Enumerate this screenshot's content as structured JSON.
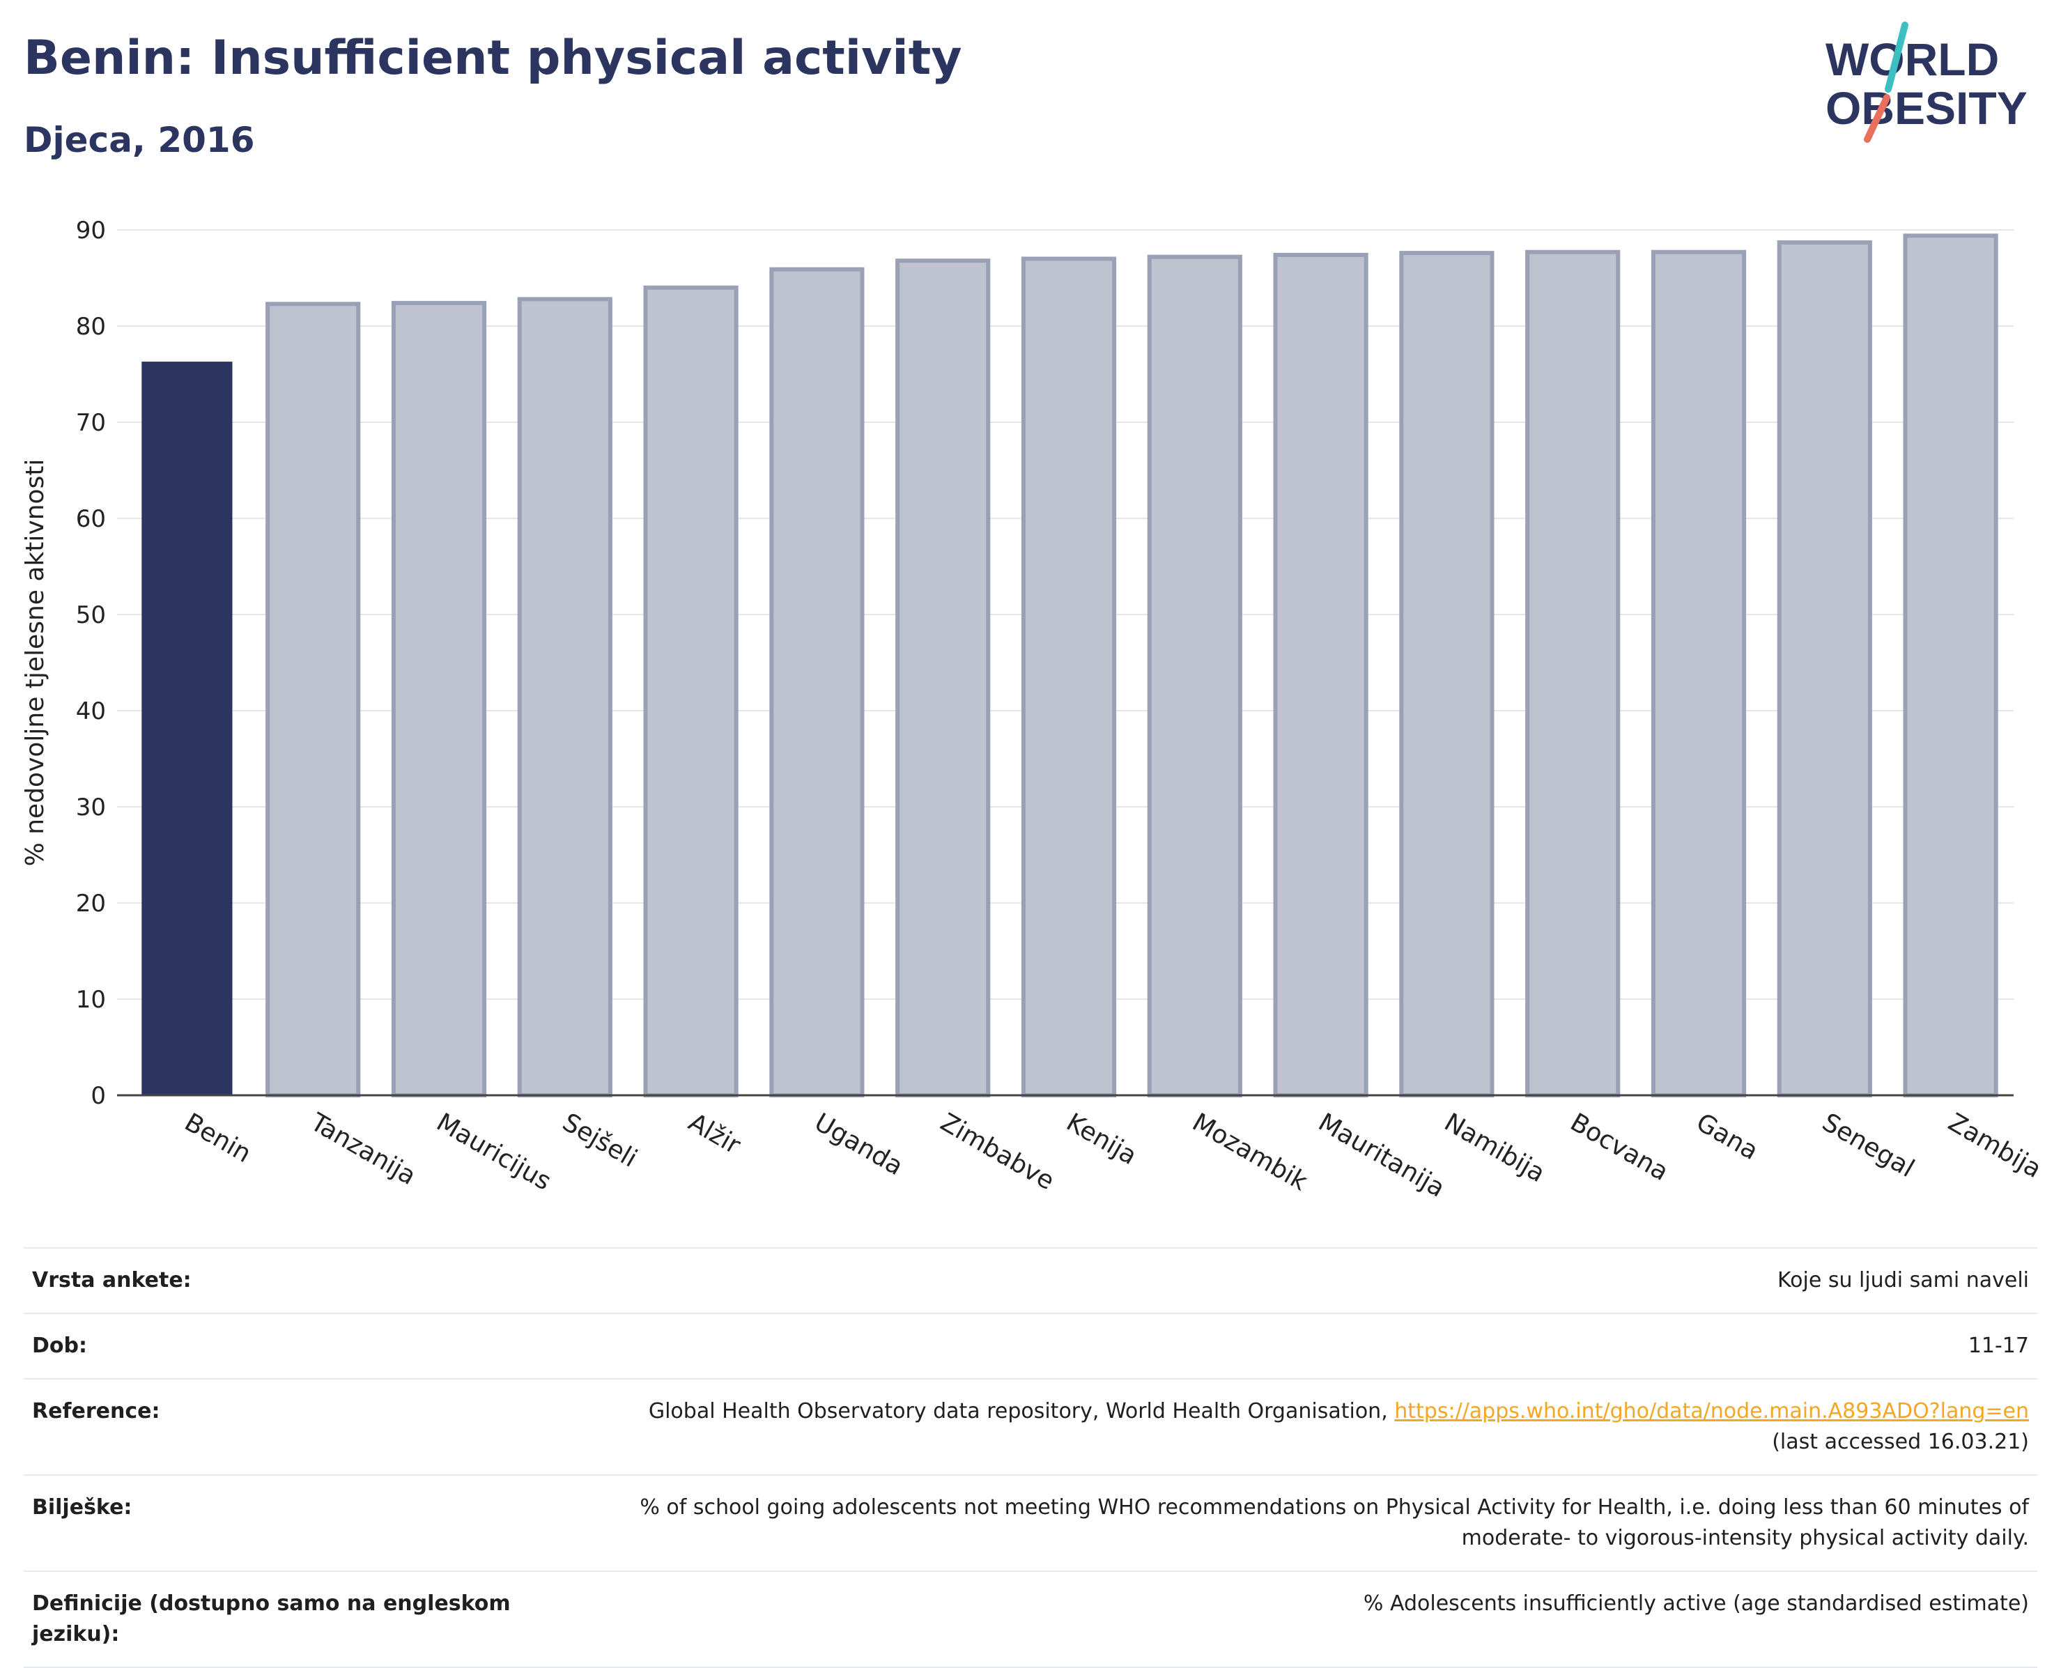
{
  "header": {
    "title": "Benin: Insufficient physical activity",
    "subtitle": "Djeca, 2016"
  },
  "logo": {
    "line1": "WORLD",
    "line2": "OBESITY",
    "text_color": "#2b3560",
    "accent_teal": "#3cbfc0",
    "accent_coral": "#e8705d"
  },
  "chart_data": {
    "type": "bar",
    "categories": [
      "Benin",
      "Tanzanija",
      "Mauricijus",
      "Sejšeli",
      "Alžir",
      "Uganda",
      "Zimbabve",
      "Kenija",
      "Mozambik",
      "Mauritanija",
      "Namibija",
      "Bocvana",
      "Gana",
      "Senegal",
      "Zambija"
    ],
    "values": [
      76.3,
      82.3,
      82.4,
      82.8,
      84.0,
      85.9,
      86.8,
      87.0,
      87.2,
      87.4,
      87.6,
      87.7,
      87.7,
      88.7,
      89.4
    ],
    "highlight": "Benin",
    "ylabel": "% nedovoljne tjelesne aktivnosti",
    "ylim": [
      0,
      90
    ],
    "yticks": [
      0,
      10,
      20,
      30,
      40,
      50,
      60,
      70,
      80,
      90
    ],
    "grid": true,
    "colors": {
      "highlight": "#2b3560",
      "other_fill": "#bfc3cf",
      "other_stroke": "#9aa0b6"
    }
  },
  "info": [
    {
      "label": "Vrsta ankete:",
      "value": "Koje su ljudi sami naveli"
    },
    {
      "label": "Dob:",
      "value": "11-17"
    },
    {
      "label": "Reference:",
      "value": "Global Health Observatory data repository, World Health Organisation, ",
      "link": "https://apps.who.int/gho/data/node.main.A893ADO?lang=en",
      "value2": "(last accessed 16.03.21)"
    },
    {
      "label": "Bilješke:",
      "value": "% of school going adolescents not meeting WHO recommendations on Physical Activity for Health, i.e. doing less than 60 minutes of moderate- to vigorous-intensity physical activity daily."
    },
    {
      "label": "Definicije (dostupno samo na engleskom jeziku):",
      "value": "% Adolescents insufficiently active (age standardised estimate)"
    }
  ]
}
